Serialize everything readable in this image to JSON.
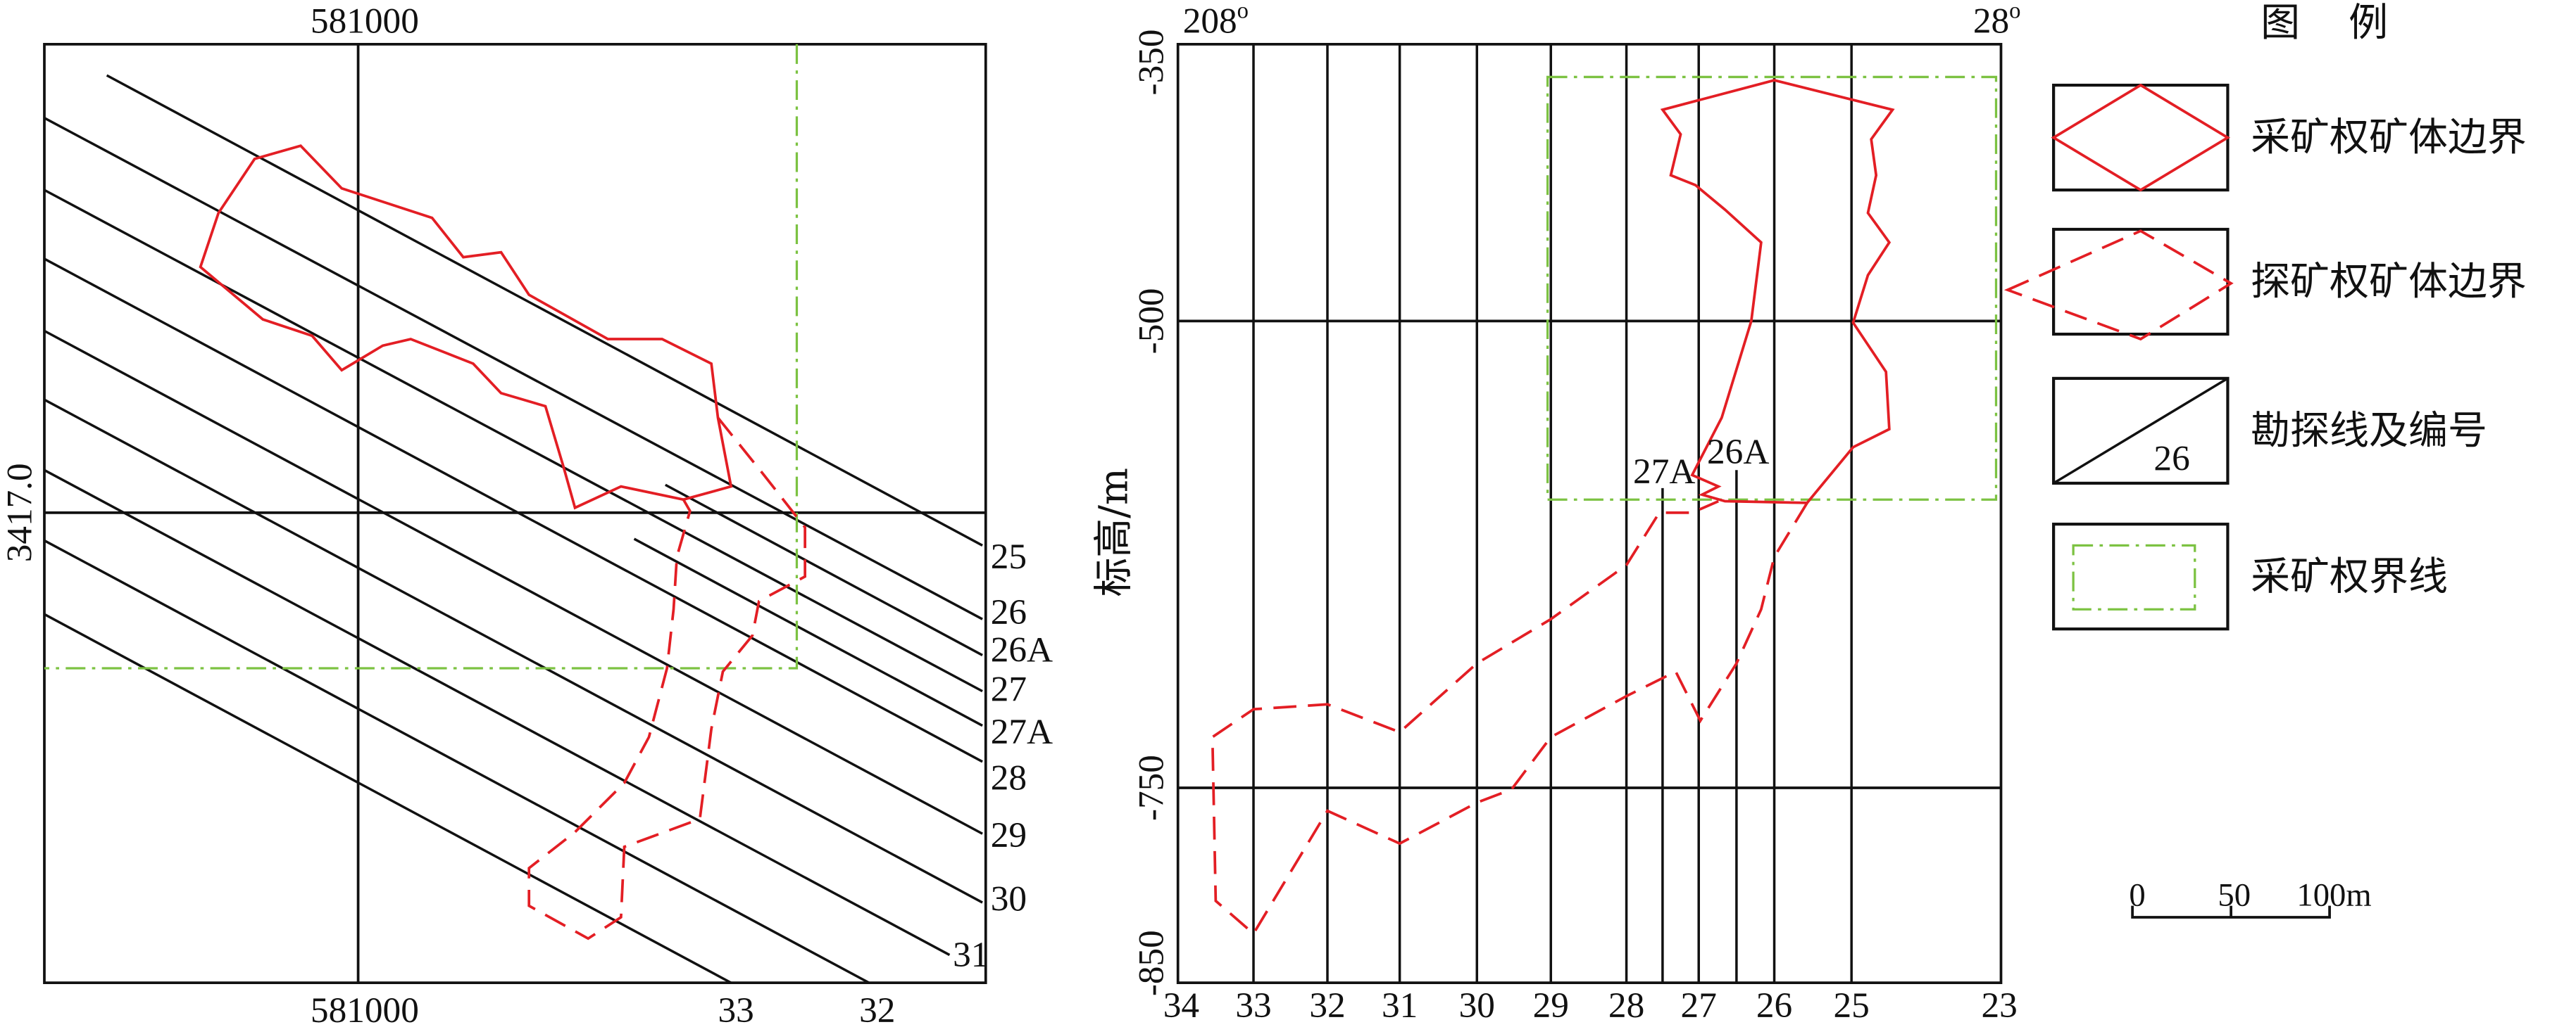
{
  "left_map": {
    "easting_top": "581000",
    "easting_bottom": "581000",
    "northing": "3417.0",
    "line_labels": [
      "25",
      "26",
      "26A",
      "27",
      "27A",
      "28",
      "29",
      "30",
      "31",
      "32",
      "33"
    ]
  },
  "section": {
    "top_left": "208",
    "top_left_sup": "o",
    "top_right": "28",
    "top_right_sup": "o",
    "elevations": [
      "-350",
      "-500",
      "-750",
      "-850"
    ],
    "y_axis_label": "标高/m",
    "bottom_labels": [
      "34",
      "33",
      "32",
      "31",
      "30",
      "29",
      "28",
      "27",
      "26",
      "25",
      "23"
    ],
    "inner_labels": [
      "27A",
      "26A"
    ]
  },
  "legend": {
    "title": "图 例",
    "items": [
      {
        "label": "采矿权矿体边界",
        "icon": "solid-red-diamond"
      },
      {
        "label": "探矿权矿体边界",
        "icon": "dashed-red-diamond"
      },
      {
        "label": "勘探线及编号",
        "icon": "diagonal-line"
      },
      {
        "label": "采矿权界线",
        "icon": "green-dash-dot-rectangle"
      }
    ],
    "line_number": "26"
  },
  "scale_bar": {
    "labels": [
      "0",
      "50",
      "100m"
    ]
  },
  "colors": {
    "orebody_boundary": "#e31e24",
    "mining_right_line": "#7cc242",
    "ink": "#111111"
  }
}
